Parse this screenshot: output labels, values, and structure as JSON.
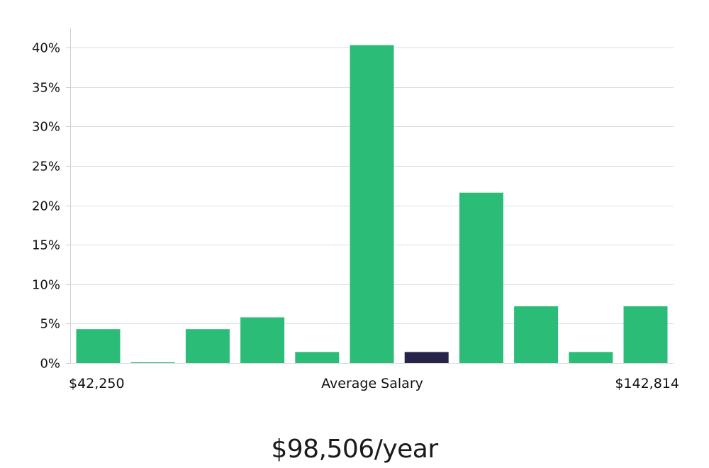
{
  "chart_data": {
    "type": "bar",
    "values": [
      4.3,
      0.1,
      4.3,
      5.8,
      1.4,
      40.3,
      1.4,
      21.6,
      7.2,
      1.4,
      7.2
    ],
    "highlight_index": 6,
    "colors": {
      "bar": "#2bbd77",
      "bar_highlight": "#27244a",
      "grid": "#dddddd",
      "axis": "#d0d0d0"
    },
    "ylim": [
      0,
      42.4
    ],
    "yticks": [
      0,
      5,
      10,
      15,
      20,
      25,
      30,
      35,
      40
    ],
    "ytick_suffix": "%",
    "grid": true,
    "x_min_label": "$42,250",
    "x_center_label": "Average Salary",
    "x_max_label": "$142,814"
  },
  "headline": "$98,506/year"
}
